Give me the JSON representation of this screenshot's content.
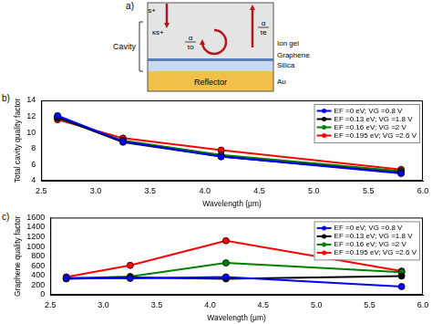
{
  "diagram": {
    "panel_label": "a)",
    "incident": "s+",
    "coupled": "κs+",
    "external_loss": {
      "num": "α",
      "den": "τe"
    },
    "internal_loss": {
      "num": "α",
      "den": "τo"
    },
    "cavity": "Cavity",
    "layers": [
      "Ion gel",
      "Graphene",
      "Silica",
      "Au"
    ],
    "reflector": "Reflector"
  },
  "chart_data": [
    {
      "panel_label": "b)",
      "type": "line",
      "xlabel": "Wavelength (μm)",
      "ylabel": "Total cavity quality factor",
      "x": [
        2.65,
        3.25,
        4.15,
        5.8
      ],
      "xlim": [
        2.5,
        6.0
      ],
      "xticks": [
        2.5,
        {
          "value": 3,
          "label": "3.0"
        },
        3.5,
        {
          "value": 4,
          "label": "4.0"
        },
        4.5,
        {
          "value": 5,
          "label": "5.0"
        },
        5.5,
        {
          "value": 6,
          "label": "6.0"
        }
      ],
      "ylim": [
        4,
        14
      ],
      "yticks": [
        4,
        6,
        8,
        10,
        12,
        14
      ],
      "grid": false,
      "legend": "upper right",
      "marker": "circle",
      "line_style": "solid",
      "series": [
        {
          "name": "EF =0 eV; VG =0.8 V",
          "color": "#0000ff",
          "values": [
            12.1,
            8.9,
            7.0,
            4.9
          ]
        },
        {
          "name": "EF =0.13 eV; VG =1.8 V",
          "color": "#000000",
          "values": [
            11.9,
            8.8,
            7.0,
            5.0
          ]
        },
        {
          "name": "EF =0.16 eV; VG =2 V",
          "color": "#008000",
          "values": [
            11.8,
            9.0,
            7.2,
            5.2
          ]
        },
        {
          "name": "EF =0.195 eV; VG =2.6 V",
          "color": "#ff0000",
          "values": [
            11.6,
            9.3,
            7.8,
            5.4
          ]
        }
      ]
    },
    {
      "panel_label": "c)",
      "type": "line",
      "xlabel": "Wavelength (μm)",
      "ylabel": "Graphene quality factor",
      "x": [
        2.65,
        3.25,
        4.15,
        5.8
      ],
      "xlim": [
        2.5,
        6.0
      ],
      "xticks": [
        2.5,
        {
          "value": 3,
          "label": "3.0"
        },
        3.5,
        {
          "value": 4,
          "label": "4.0"
        },
        4.5,
        {
          "value": 5,
          "label": "5.0"
        },
        5.5,
        {
          "value": 6,
          "label": "6.0"
        }
      ],
      "ylim": [
        0,
        1600
      ],
      "yticks": [
        0,
        200,
        400,
        600,
        800,
        1000,
        1200,
        1400,
        1600
      ],
      "grid": false,
      "legend": "upper right",
      "marker": "circle",
      "line_style": "solid",
      "series": [
        {
          "name": "EF =0 eV; VG =0.8 V",
          "color": "#0000ff",
          "values": [
            350,
            340,
            370,
            170
          ]
        },
        {
          "name": "EF =0.13 eV; VG =1.8 V",
          "color": "#000000",
          "values": [
            330,
            360,
            330,
            390
          ]
        },
        {
          "name": "EF =0.16 eV; VG =2 V",
          "color": "#008000",
          "values": [
            340,
            380,
            660,
            470
          ]
        },
        {
          "name": "EF =0.195 eV; VG =2.6 V",
          "color": "#ff0000",
          "values": [
            370,
            610,
            1120,
            490
          ]
        }
      ]
    }
  ]
}
